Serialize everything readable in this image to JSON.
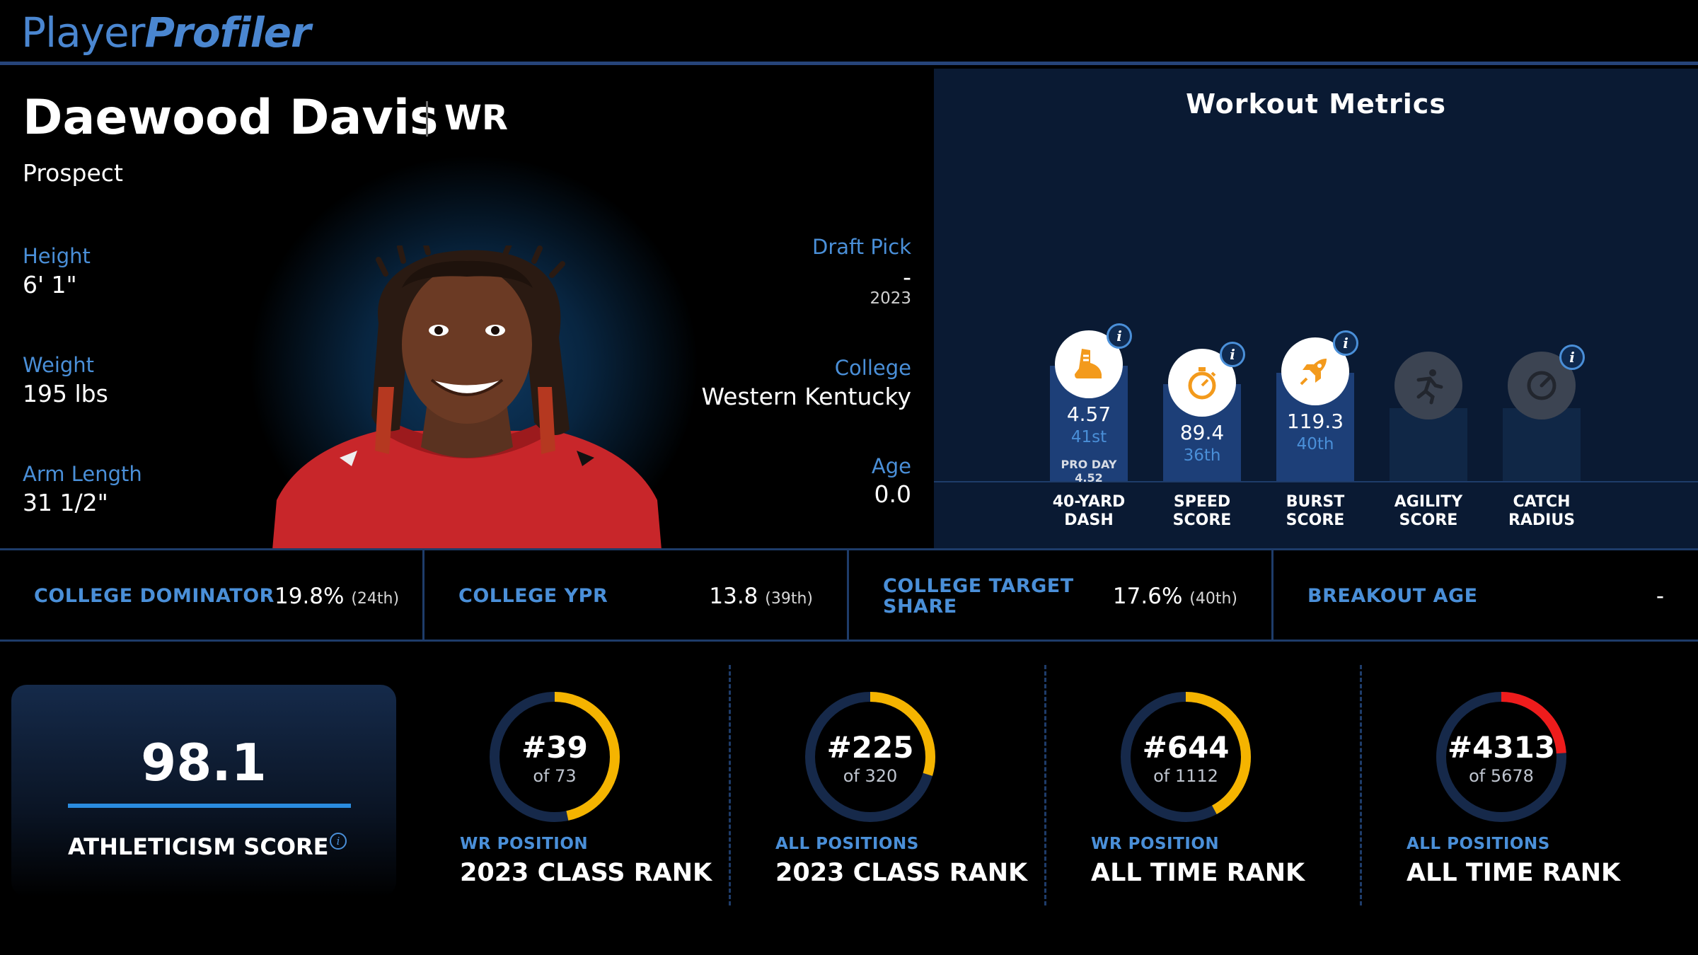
{
  "header": {
    "logo_part1": "Player",
    "logo_part2": "Profiler"
  },
  "player": {
    "name": "Daewood Davis",
    "position": "WR",
    "status": "Prospect",
    "height_label": "Height",
    "height": "6' 1\"",
    "weight_label": "Weight",
    "weight": "195 lbs",
    "arm_label": "Arm Length",
    "arm": "31 1/2\"",
    "draft_label": "Draft Pick",
    "draft_pick": "-",
    "draft_year": "2023",
    "college_label": "College",
    "college": "Western Kentucky",
    "age_label": "Age",
    "age": "0.0"
  },
  "workout": {
    "title": "Workout Metrics",
    "metrics": [
      {
        "label1": "40-YARD",
        "label2": "DASH",
        "value": "4.57",
        "rank": "41st",
        "proday_label": "PRO DAY",
        "proday_value": "4.52",
        "icon": "shoe-icon",
        "active": true,
        "level": 0.59
      },
      {
        "label1": "SPEED",
        "label2": "SCORE",
        "value": "89.4",
        "rank": "36th",
        "icon": "stopwatch-icon",
        "active": true,
        "level": 0.36
      },
      {
        "label1": "BURST",
        "label2": "SCORE",
        "value": "119.3",
        "rank": "40th",
        "icon": "rocket-icon",
        "active": true,
        "level": 0.4
      },
      {
        "label1": "AGILITY",
        "label2": "SCORE",
        "icon": "runner-icon",
        "active": false
      },
      {
        "label1": "CATCH",
        "label2": "RADIUS",
        "icon": "radius-icon",
        "active": false
      }
    ],
    "colors": {
      "icon_orange": "#f39a1c",
      "bar_blue": "#1d3f78",
      "bar_empty": "#102746"
    }
  },
  "stats": {
    "dominator_label": "COLLEGE DOMINATOR",
    "dominator_value": "19.8%",
    "dominator_rank": "(24th)",
    "ypr_label": "COLLEGE YPR",
    "ypr_value": "13.8",
    "ypr_rank": "(39th)",
    "target_label_1": "COLLEGE TARGET",
    "target_label_2": "SHARE",
    "target_value": "17.6%",
    "target_rank": "(40th)",
    "breakout_label": "BREAKOUT AGE",
    "breakout_value": "-"
  },
  "athleticism": {
    "score": "98.1",
    "label": "ATHLETICISM SCORE"
  },
  "ranks": [
    {
      "number": "#39",
      "of": "of 73",
      "sub": "WR POSITION",
      "title": "2023 CLASS RANK",
      "fraction": 0.466,
      "color": "#f5b400"
    },
    {
      "number": "#225",
      "of": "of 320",
      "sub": "ALL POSITIONS",
      "title": "2023 CLASS RANK",
      "fraction": 0.297,
      "color": "#f5b400"
    },
    {
      "number": "#644",
      "of": "of 1112",
      "sub": "WR POSITION",
      "title": "ALL TIME RANK",
      "fraction": 0.421,
      "color": "#f5b400"
    },
    {
      "number": "#4313",
      "of": "of 5678",
      "sub": "ALL POSITIONS",
      "title": "ALL TIME RANK",
      "fraction": 0.24,
      "color": "#ee1c1c"
    }
  ]
}
